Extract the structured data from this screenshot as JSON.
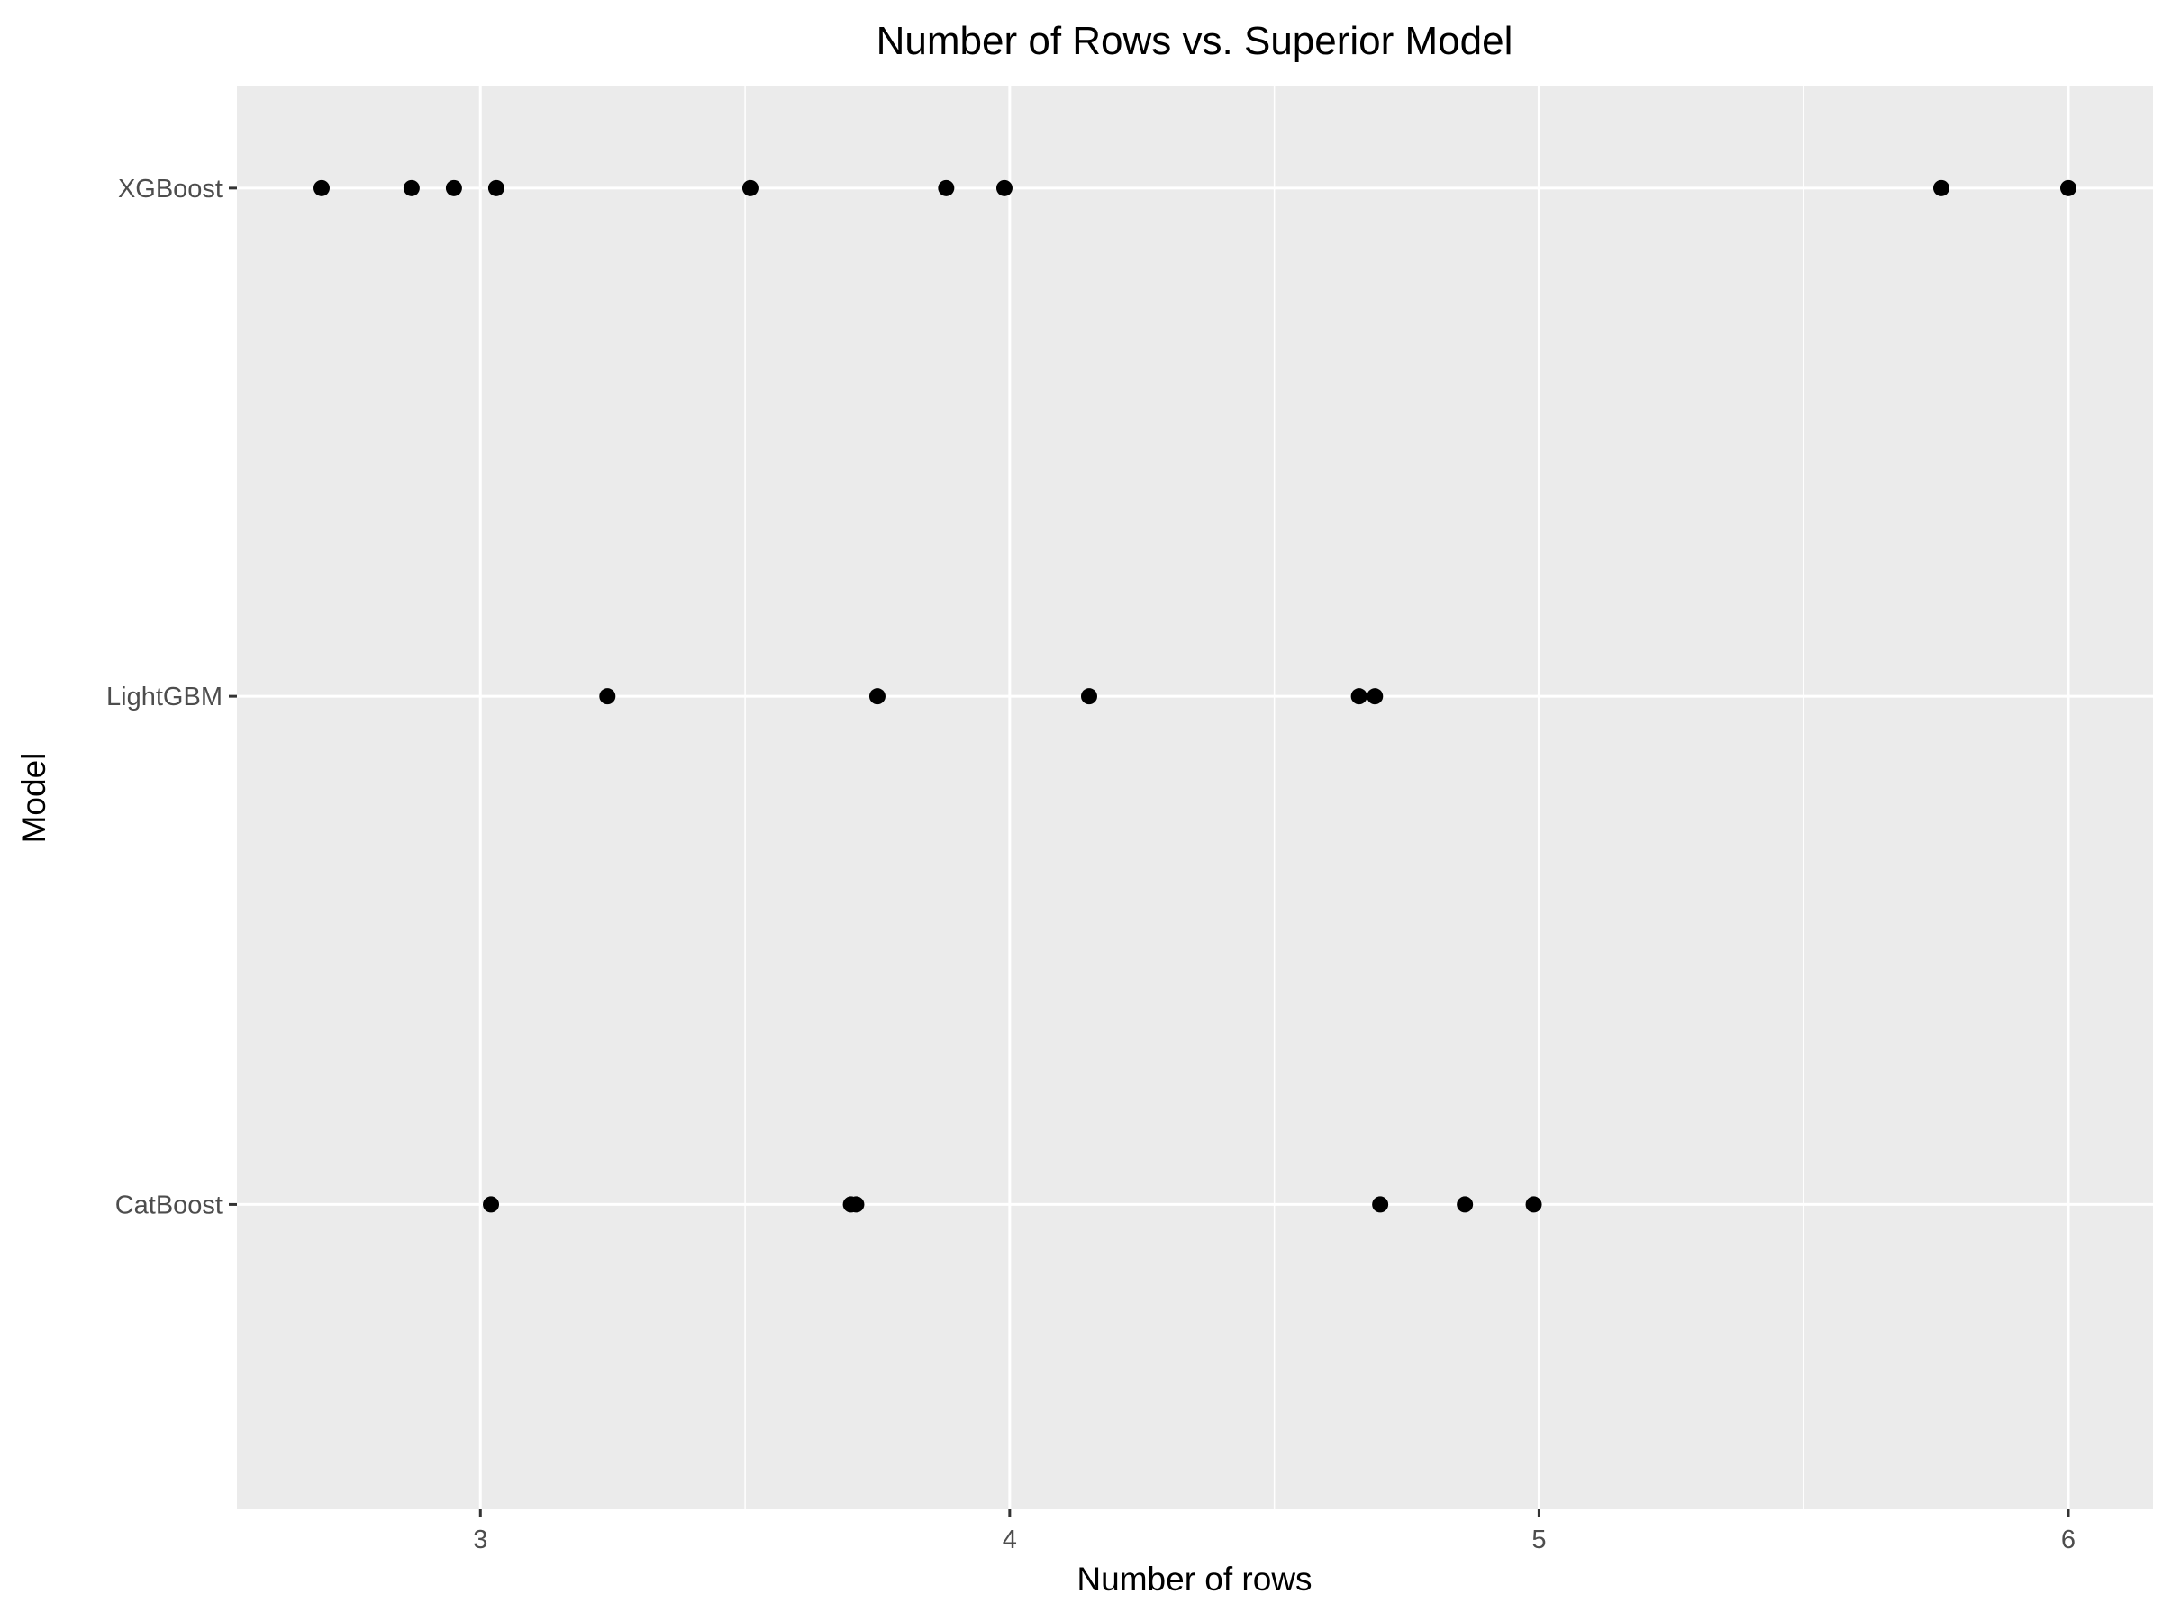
{
  "chart_data": {
    "type": "scatter",
    "title": "Number of Rows  vs. Superior Model",
    "xlabel": "Number of rows",
    "ylabel": "Model",
    "xlim": [
      2.54,
      6.16
    ],
    "x_ticks": [
      3,
      4,
      5,
      6
    ],
    "x_tick_labels": [
      "3",
      "4",
      "5",
      "6"
    ],
    "categories": [
      "CatBoost",
      "LightGBM",
      "XGBoost"
    ],
    "grid": true,
    "points": [
      {
        "category": "XGBoost",
        "x": 2.7
      },
      {
        "category": "XGBoost",
        "x": 2.87
      },
      {
        "category": "XGBoost",
        "x": 2.95
      },
      {
        "category": "XGBoost",
        "x": 3.03
      },
      {
        "category": "XGBoost",
        "x": 3.51
      },
      {
        "category": "XGBoost",
        "x": 3.88
      },
      {
        "category": "XGBoost",
        "x": 3.99
      },
      {
        "category": "XGBoost",
        "x": 5.76
      },
      {
        "category": "XGBoost",
        "x": 6.0
      },
      {
        "category": "LightGBM",
        "x": 3.24
      },
      {
        "category": "LightGBM",
        "x": 3.75
      },
      {
        "category": "LightGBM",
        "x": 4.15
      },
      {
        "category": "LightGBM",
        "x": 4.66
      },
      {
        "category": "LightGBM",
        "x": 4.69
      },
      {
        "category": "CatBoost",
        "x": 3.02
      },
      {
        "category": "CatBoost",
        "x": 3.7
      },
      {
        "category": "CatBoost",
        "x": 3.71
      },
      {
        "category": "CatBoost",
        "x": 4.7
      },
      {
        "category": "CatBoost",
        "x": 4.86
      },
      {
        "category": "CatBoost",
        "x": 4.99
      }
    ],
    "colors": {
      "panel": "#ebebeb",
      "grid": "#ffffff",
      "point": "#000000",
      "tick_label": "#4d4d4d"
    }
  }
}
